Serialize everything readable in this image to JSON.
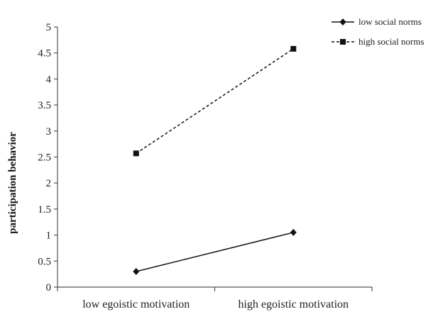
{
  "chart_data": {
    "type": "line",
    "title": "",
    "xlabel": "",
    "ylabel": "participation behavior",
    "categories": [
      "low egoistic motivation",
      "high egoistic motivation"
    ],
    "ylim": [
      0,
      5
    ],
    "yticks": [
      "0",
      "0.5",
      "1",
      "1.5",
      "2",
      "2.5",
      "3",
      "3.5",
      "4",
      "4.5",
      "5"
    ],
    "grid": false,
    "legend_position": "top-right",
    "series": [
      {
        "name": "low social norms",
        "values": [
          0.3,
          1.05
        ],
        "line_style": "solid",
        "marker": "diamond",
        "color": "#111111"
      },
      {
        "name": "high social norms",
        "values": [
          2.57,
          4.58
        ],
        "line_style": "dashed",
        "marker": "square",
        "color": "#111111"
      }
    ]
  }
}
